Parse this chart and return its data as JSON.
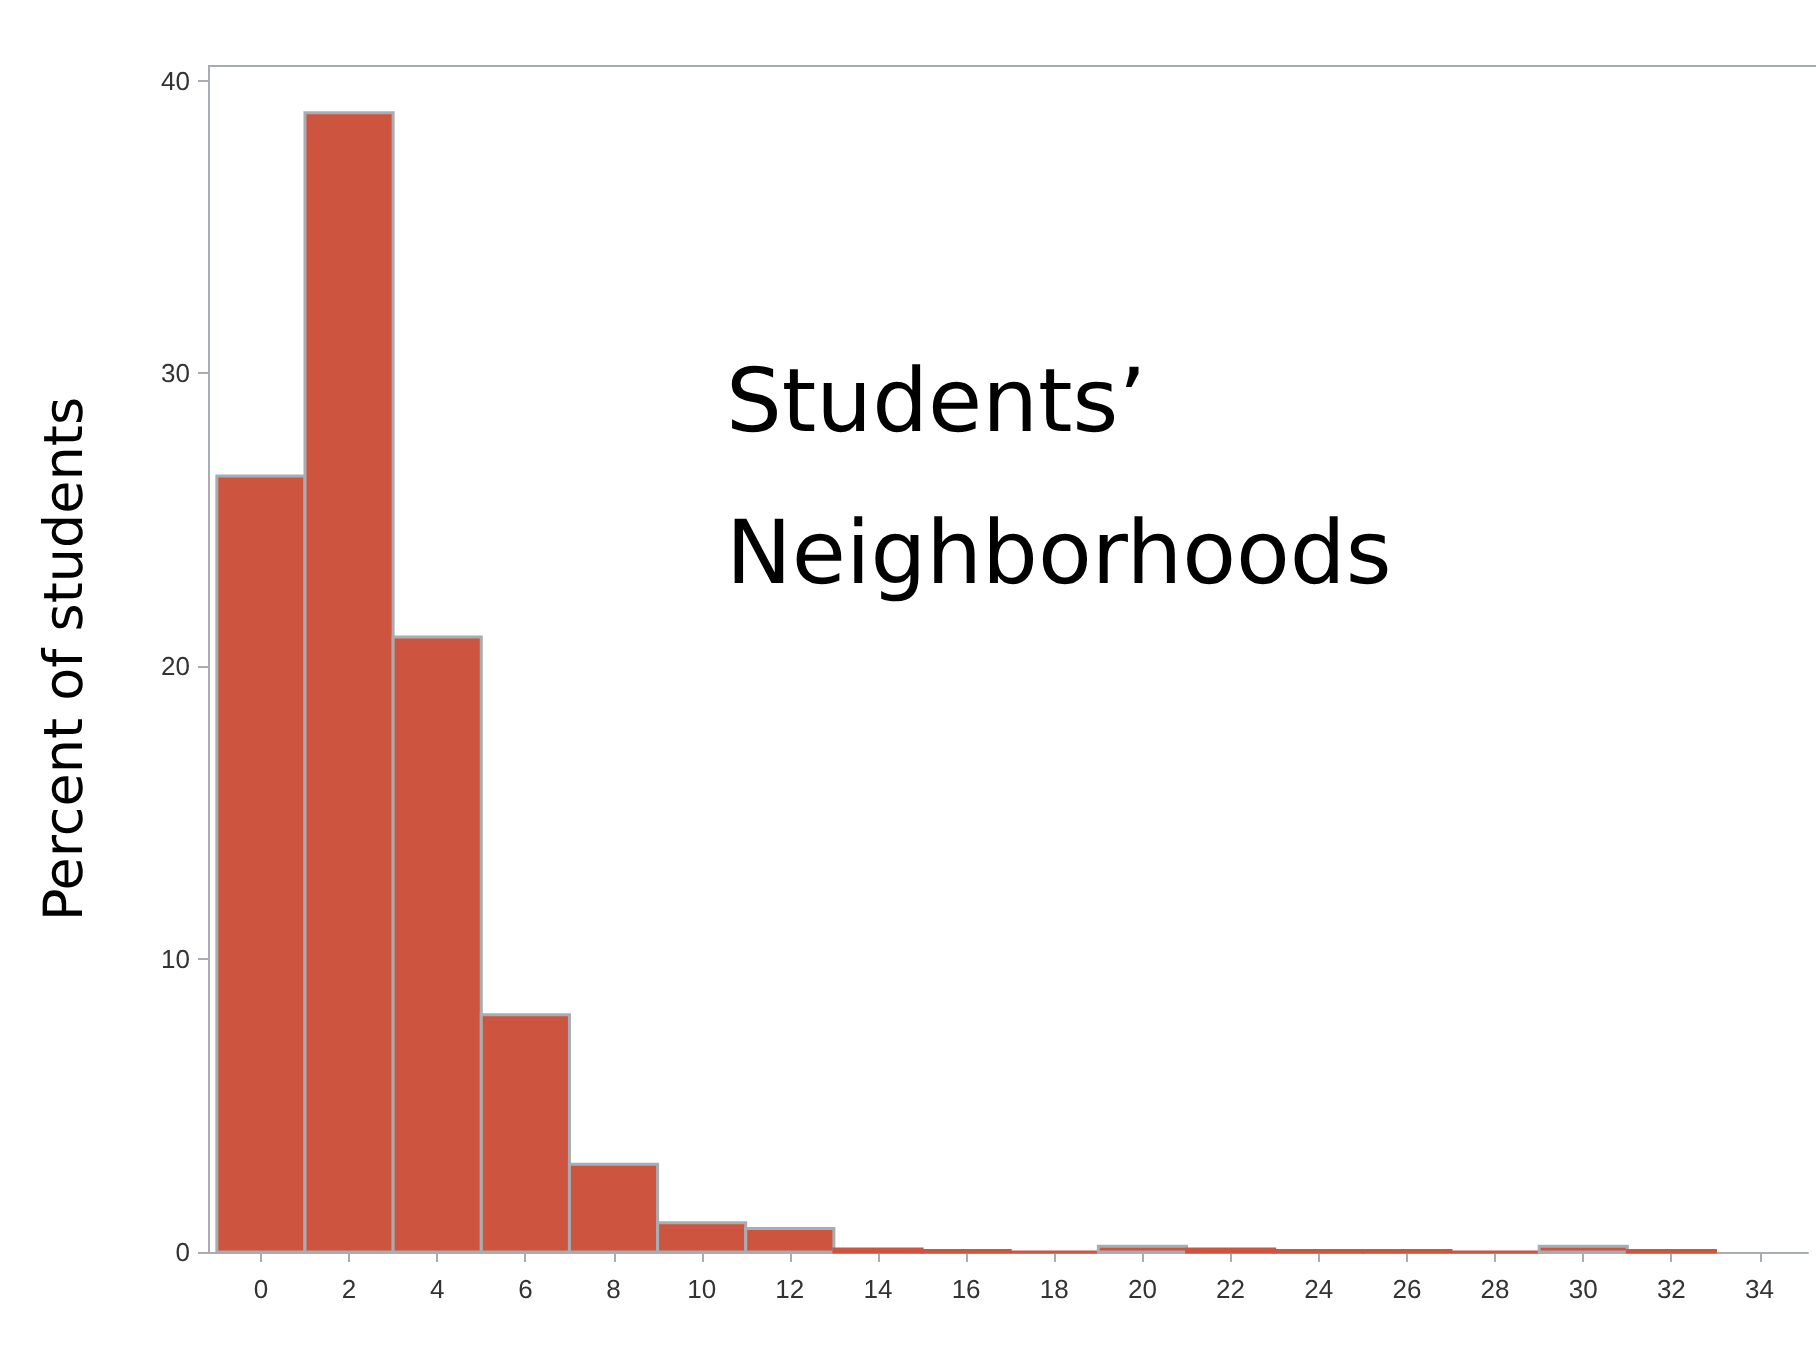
{
  "chart_data": {
    "type": "histogram",
    "title": "Students’\nNeighborhoods",
    "ylabel": "Percent of students",
    "bins": [
      -1,
      1,
      3,
      5,
      7,
      9,
      11,
      13,
      15,
      17,
      19,
      21,
      23,
      25,
      27,
      29,
      31,
      33
    ],
    "values": [
      26.5,
      38.9,
      21,
      8.1,
      3,
      1,
      0.8,
      0.1,
      0.05,
      0,
      0.2,
      0.1,
      0.05,
      0.05,
      0,
      0.2,
      0.05
    ],
    "color": "#cd5540",
    "xlim": [
      -1.2,
      35.1
    ],
    "ylim": [
      0,
      40.5
    ],
    "xticks": [
      0,
      2,
      4,
      6,
      8,
      10,
      12,
      14,
      16,
      18,
      20,
      22,
      24,
      26,
      28,
      30,
      32,
      34
    ],
    "yticks": [
      0,
      10,
      20,
      30,
      40
    ],
    "grid": false
  }
}
